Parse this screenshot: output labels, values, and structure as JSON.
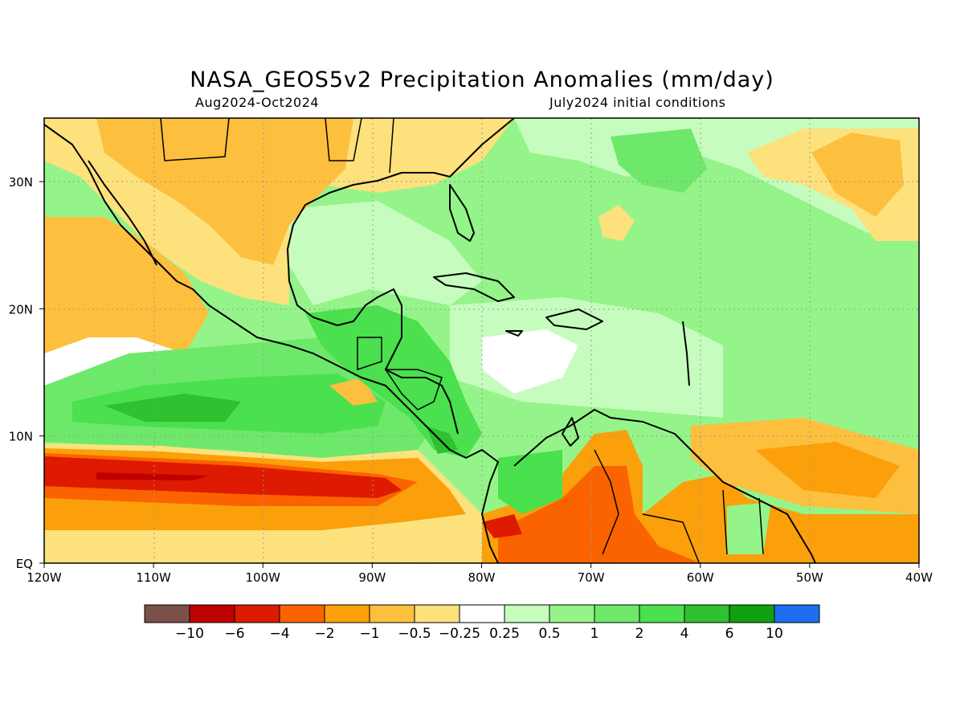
{
  "title": "NASA_GEOS5v2 Precipitation Anomalies (mm/day)",
  "subtitle_left": "Aug2024-Oct2024",
  "subtitle_right": "July2024 initial conditions",
  "map": {
    "lon_range": [
      -120,
      -40
    ],
    "lat_range": [
      0,
      35
    ],
    "x_ticks": [
      {
        "lon": -120,
        "label": "120W"
      },
      {
        "lon": -110,
        "label": "110W"
      },
      {
        "lon": -100,
        "label": "100W"
      },
      {
        "lon": -90,
        "label": "90W"
      },
      {
        "lon": -80,
        "label": "80W"
      },
      {
        "lon": -70,
        "label": "70W"
      },
      {
        "lon": -60,
        "label": "60W"
      },
      {
        "lon": -50,
        "label": "50W"
      },
      {
        "lon": -40,
        "label": "40W"
      }
    ],
    "y_ticks": [
      {
        "lat": 0,
        "label": "EQ"
      },
      {
        "lat": 10,
        "label": "10N"
      },
      {
        "lat": 20,
        "label": "20N"
      },
      {
        "lat": 30,
        "label": "30N"
      }
    ],
    "gridlines": "dotted"
  },
  "colorbar": {
    "colors": [
      "#7a5048",
      "#bf0000",
      "#de1a00",
      "#fb6300",
      "#fba00a",
      "#fdbf3e",
      "#fde17d",
      "#ffffff",
      "#c6fdbf",
      "#94f489",
      "#6ee86a",
      "#4ae04e",
      "#2fc12f",
      "#10a010",
      "#1e6ef0"
    ],
    "labels": [
      "-10",
      "-6",
      "-4",
      "-2",
      "-1",
      "-0.5",
      "-0.25",
      "0.25",
      "0.5",
      "1",
      "2",
      "4",
      "6",
      "10"
    ]
  }
}
